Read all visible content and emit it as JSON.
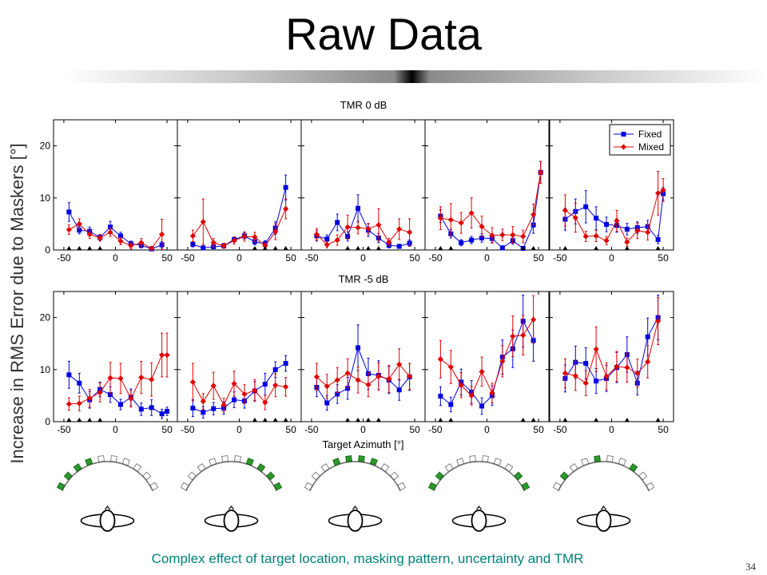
{
  "slide": {
    "title": "Raw Data",
    "ylabel": "Increase in RMS Error due to Maskers [°]",
    "caption": "Complex effect of target location, masking pattern, uncertainty and TMR",
    "page_number": "34"
  },
  "chart_data": {
    "type": "line",
    "xlabel": "Target Azimuth [°]",
    "ylabel": "Increase in RMS Error due to Maskers [°]",
    "xlim": [
      -60,
      60
    ],
    "ylim": [
      0,
      25
    ],
    "xticks": [
      -50,
      0,
      50
    ],
    "yticks": [
      0,
      10,
      20
    ],
    "x": [
      -45,
      -35,
      -25,
      -15,
      -5,
      5,
      15,
      25,
      35,
      45
    ],
    "legend": [
      "Fixed",
      "Mixed"
    ],
    "legend_position": "top-right",
    "colors": {
      "Fixed": "#0000e0",
      "Mixed": "#e00000",
      "marker": "#000000",
      "loudspeaker": "#2a9a2a"
    },
    "rows": [
      {
        "title": "TMR 0 dB",
        "panels": [
          {
            "fixed": [
              7.3,
              3.8,
              3.6,
              2.4,
              4.4,
              2.7,
              1.2,
              0.9,
              0.2,
              1.0
            ],
            "fixed_err": [
              1.8,
              0.7,
              0.8,
              0.6,
              1.1,
              0.7,
              0.5,
              0.5,
              0.3,
              0.6
            ],
            "mixed": [
              3.9,
              5.0,
              3.0,
              2.3,
              3.4,
              1.7,
              0.8,
              1.4,
              0.3,
              3.0
            ],
            "mixed_err": [
              0.9,
              1.0,
              0.8,
              0.6,
              0.8,
              0.7,
              0.6,
              0.8,
              0.4,
              2.9
            ],
            "markers": [
              -45,
              -35,
              -25,
              -15
            ],
            "loudspeakers": "LLLLSSSSSS"
          },
          {
            "fixed": [
              1.1,
              0.4,
              0.6,
              0.8,
              2.0,
              2.7,
              1.6,
              1.2,
              4.2,
              12.0
            ],
            "fixed_err": [
              0.5,
              0.3,
              0.3,
              0.4,
              0.5,
              0.6,
              0.6,
              0.6,
              1.2,
              2.4
            ],
            "mixed": [
              2.7,
              5.4,
              1.4,
              0.8,
              1.8,
              2.6,
              2.5,
              0.8,
              3.5,
              7.9
            ],
            "mixed_err": [
              1.1,
              4.4,
              0.8,
              0.5,
              0.7,
              0.9,
              0.9,
              0.5,
              1.5,
              1.9
            ],
            "markers": [
              15,
              25,
              35,
              45
            ],
            "loudspeakers": "SSSSSSLLLL"
          },
          {
            "fixed": [
              2.7,
              2.1,
              5.3,
              2.6,
              8.0,
              3.8,
              2.3,
              0.9,
              0.7,
              1.3
            ],
            "fixed_err": [
              1.0,
              0.8,
              1.6,
              0.9,
              2.6,
              1.2,
              0.9,
              0.5,
              0.4,
              0.6
            ],
            "mixed": [
              3.0,
              1.0,
              1.9,
              4.4,
              4.3,
              4.1,
              4.8,
              1.5,
              4.0,
              3.4
            ],
            "mixed_err": [
              1.1,
              0.6,
              1.0,
              2.3,
              1.2,
              1.0,
              3.1,
              0.7,
              2.0,
              2.6
            ],
            "markers": [
              -15,
              -5,
              5,
              15
            ],
            "loudspeakers": "SSSLLLLSSS"
          },
          {
            "fixed": [
              6.5,
              3.1,
              1.4,
              1.9,
              2.3,
              2.2,
              0.4,
              1.8,
              0.3,
              4.8
            ],
            "fixed_err": [
              1.2,
              0.8,
              0.6,
              0.7,
              0.8,
              0.7,
              0.4,
              0.7,
              0.3,
              1.6
            ],
            "mixed": [
              6.1,
              5.8,
              5.2,
              7.1,
              4.5,
              2.8,
              2.9,
              2.9,
              2.6,
              6.8
            ],
            "mixed_err": [
              2.2,
              3.1,
              2.0,
              2.9,
              2.0,
              1.5,
              1.1,
              1.6,
              1.2,
              2.0
            ],
            "markers": [
              -45,
              -35,
              35,
              45
            ],
            "loudspeakers": "LLSSSSSSLL",
            "extra": {
              "x": 52,
              "fixed": 14.9,
              "fixed_err": 2.1,
              "mixed": 14.9,
              "mixed_err": 2.1
            }
          },
          {
            "fixed": [
              5.9,
              7.4,
              8.3,
              6.1,
              4.9,
              4.7,
              4.0,
              4.3,
              4.5,
              2.0
            ],
            "fixed_err": [
              2.1,
              2.4,
              3.1,
              2.2,
              1.4,
              1.3,
              1.1,
              1.1,
              1.2,
              0.8
            ],
            "mixed": [
              7.6,
              6.2,
              2.6,
              2.7,
              1.8,
              5.6,
              1.5,
              3.7,
              3.4,
              10.9
            ],
            "mixed_err": [
              3.0,
              2.8,
              1.0,
              1.1,
              0.8,
              2.0,
              0.8,
              1.5,
              1.5,
              4.2
            ],
            "markers": [
              -45,
              -15,
              15,
              45
            ],
            "loudspeakers": "SLSSLSSLSS",
            "extra": {
              "x": 50,
              "fixed": 10.8,
              "fixed_err": 1.2,
              "mixed": 11.5,
              "mixed_err": 2.2
            },
            "show_legend": true
          }
        ]
      },
      {
        "title": "TMR -5 dB",
        "panels": [
          {
            "fixed": [
              9.0,
              7.4,
              4.2,
              6.2,
              5.2,
              3.3,
              4.7,
              2.4,
              2.7,
              1.5
            ],
            "fixed_err": [
              2.6,
              1.9,
              1.6,
              1.4,
              1.5,
              1.0,
              1.6,
              1.2,
              1.5,
              0.9
            ],
            "mixed": [
              3.4,
              3.5,
              4.5,
              5.6,
              8.4,
              8.3,
              4.4,
              8.5,
              8.1,
              12.8
            ],
            "mixed_err": [
              1.2,
              1.4,
              1.7,
              1.8,
              3.0,
              2.9,
              1.6,
              3.1,
              3.2,
              4.2
            ],
            "markers": [
              -45,
              -35,
              -25,
              -15
            ],
            "extra": {
              "x": 50,
              "fixed": 2.0,
              "fixed_err": 0.8,
              "mixed": 12.8,
              "mixed_err": 4.2
            },
            "loudspeakers": "LLLLSSSSSS"
          },
          {
            "fixed": [
              2.6,
              1.8,
              2.5,
              2.6,
              4.2,
              4.0,
              5.9,
              7.2,
              10.0,
              11.2
            ],
            "fixed_err": [
              1.6,
              1.1,
              1.2,
              1.2,
              1.5,
              1.4,
              1.8,
              2.1,
              1.5,
              1.5
            ],
            "mixed": [
              7.6,
              3.9,
              6.9,
              3.2,
              7.3,
              5.3,
              6.0,
              3.7,
              7.0,
              6.7
            ],
            "mixed_err": [
              3.6,
              1.5,
              2.6,
              1.3,
              2.4,
              1.8,
              2.1,
              1.4,
              2.2,
              1.8
            ],
            "markers": [
              15,
              25,
              35,
              45
            ],
            "loudspeakers": "SSSSSSLLLL"
          },
          {
            "fixed": [
              6.6,
              3.6,
              5.3,
              6.4,
              14.2,
              9.2,
              8.9,
              8.0,
              6.1,
              8.6
            ],
            "fixed_err": [
              1.8,
              1.4,
              1.8,
              2.1,
              4.4,
              3.0,
              2.8,
              2.6,
              2.0,
              2.6
            ],
            "mixed": [
              8.6,
              6.8,
              8.0,
              9.3,
              8.0,
              7.1,
              8.7,
              8.2,
              11.0,
              8.7
            ],
            "mixed_err": [
              2.6,
              2.3,
              2.4,
              2.8,
              2.5,
              2.3,
              2.6,
              2.6,
              3.0,
              2.5
            ],
            "markers": [
              -15,
              -5,
              5,
              15
            ],
            "loudspeakers": "SSSLLLLSSS"
          },
          {
            "fixed": [
              4.9,
              3.3,
              7.6,
              5.7,
              3.0,
              5.0,
              12.4,
              14.0,
              19.3,
              15.6
            ],
            "fixed_err": [
              1.8,
              1.4,
              2.5,
              2.2,
              1.6,
              1.9,
              3.3,
              3.6,
              5.0,
              4.0
            ],
            "mixed": [
              12.0,
              10.5,
              7.0,
              5.0,
              9.6,
              5.5,
              11.6,
              16.4,
              16.6,
              19.6
            ],
            "mixed_err": [
              3.6,
              3.2,
              2.4,
              1.8,
              2.8,
              1.9,
              3.0,
              3.9,
              3.8,
              4.6
            ],
            "markers": [
              -45,
              -35,
              35,
              45
            ],
            "loudspeakers": "LLSSSSSSLL"
          },
          {
            "fixed": [
              8.3,
              11.4,
              11.2,
              7.8,
              8.3,
              10.4,
              12.9,
              7.4,
              16.3,
              20.0
            ],
            "fixed_err": [
              2.6,
              3.1,
              3.0,
              2.4,
              2.5,
              2.9,
              3.4,
              2.3,
              3.6,
              4.3
            ],
            "mixed": [
              9.3,
              8.8,
              7.4,
              13.9,
              8.7,
              10.6,
              10.4,
              9.3,
              11.5,
              19.3
            ],
            "mixed_err": [
              2.8,
              2.8,
              2.4,
              4.3,
              2.6,
              2.9,
              2.8,
              2.7,
              3.1,
              4.5
            ],
            "markers": [
              -45,
              -15,
              15,
              45
            ],
            "loudspeakers": "SLSSLSSLSS"
          }
        ]
      }
    ]
  }
}
